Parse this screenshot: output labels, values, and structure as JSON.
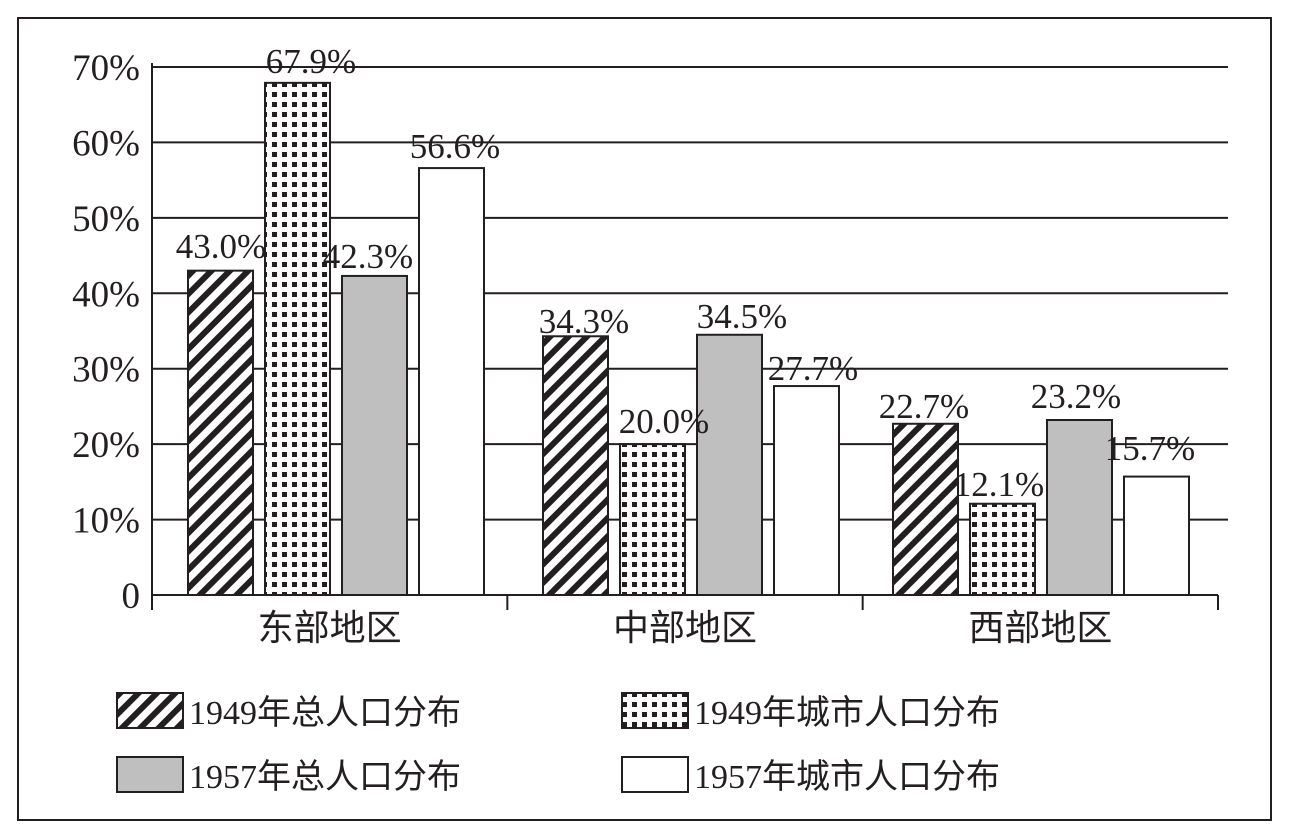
{
  "chart_data": {
    "type": "bar",
    "title": "",
    "xlabel": "",
    "ylabel": "",
    "ylim": [
      0,
      70
    ],
    "yticks": [
      0,
      10,
      20,
      30,
      40,
      50,
      60,
      70
    ],
    "ytick_labels": [
      "0",
      "10%",
      "20%",
      "30%",
      "40%",
      "50%",
      "60%",
      "70%"
    ],
    "grid": true,
    "legend_position": "bottom",
    "categories": [
      "东部地区",
      "中部地区",
      "西部地区"
    ],
    "series": [
      {
        "name": "1949年总人口分布",
        "values": [
          43.0,
          34.3,
          22.7
        ],
        "labels": [
          "43.0%",
          "34.3%",
          "22.7%"
        ],
        "fill": "hatch"
      },
      {
        "name": "1949年城市人口分布",
        "values": [
          67.9,
          20.0,
          12.1
        ],
        "labels": [
          "67.9%",
          "20.0%",
          "12.1%"
        ],
        "fill": "dots"
      },
      {
        "name": "1957年总人口分布",
        "values": [
          42.3,
          34.5,
          23.2
        ],
        "labels": [
          "42.3%",
          "34.5%",
          "23.2%"
        ],
        "fill": "#bfbfbf"
      },
      {
        "name": "1957年城市人口分布",
        "values": [
          56.6,
          27.7,
          15.7
        ],
        "labels": [
          "56.6%",
          "27.7%",
          "15.7%"
        ],
        "fill": "#ffffff"
      }
    ],
    "colors": {
      "ink": "#231f20",
      "gray": "#bfbfbf",
      "white": "#ffffff"
    }
  }
}
